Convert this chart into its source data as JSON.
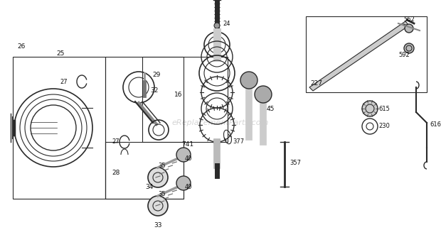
{
  "bg_color": "#ffffff",
  "line_color": "#2a2a2a",
  "watermark": "eReplacementParts.com",
  "figsize": [
    6.2,
    3.48
  ],
  "dpi": 100,
  "xlim": [
    0,
    620
  ],
  "ylim": [
    0,
    348
  ]
}
